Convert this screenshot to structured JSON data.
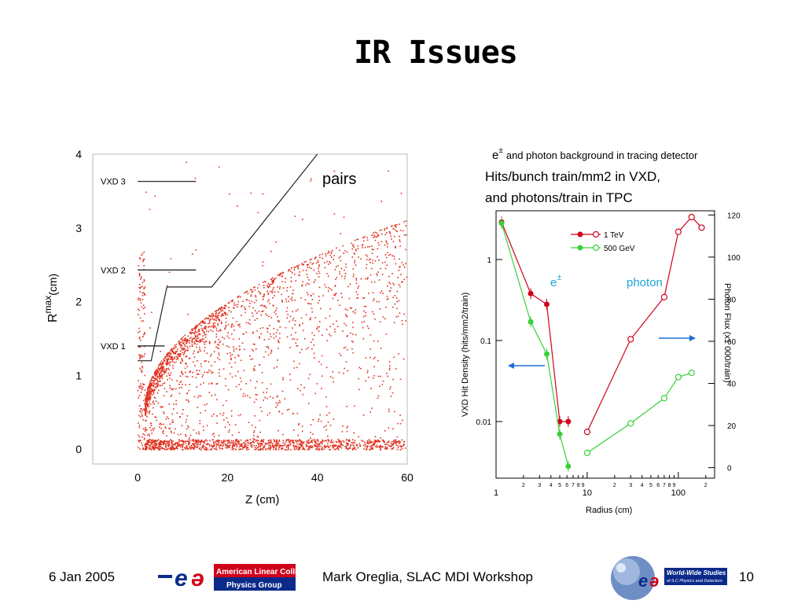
{
  "slide": {
    "title": "IR Issues",
    "footer": {
      "date": "6 Jan 2005",
      "presenter": "Mark Oreglia, SLAC MDI Workshop",
      "page": "10",
      "left_logo_text": [
        "American Linear Collider",
        "Physics Group"
      ],
      "right_logo_text": [
        "World-Wide Studies",
        "of ILC Physics and Detectors"
      ]
    }
  },
  "colors": {
    "accent_red": "#d0021b",
    "accent_green": "#39d139",
    "arrow_blue": "#1a6fd6",
    "cyan_text": "#1fa3d8"
  },
  "chart_data": [
    {
      "type": "scatter",
      "title": "",
      "xlabel": "Z  (cm)",
      "ylabel": "R",
      "ylabel_sup": "max",
      "ylabel_unit": "(cm)",
      "xlim": [
        -10,
        60
      ],
      "ylim": [
        -0.2,
        4
      ],
      "x_ticks": [
        0,
        20,
        40,
        60
      ],
      "y_ticks": [
        0,
        1,
        2,
        3,
        4
      ],
      "annotation": "pairs",
      "detector_layers": [
        {
          "label": "VXD 3",
          "r": 3.63,
          "z": [
            0,
            13
          ]
        },
        {
          "label": "VXD 2",
          "r": 2.43,
          "z": [
            0,
            13
          ]
        },
        {
          "label": "VXD 1",
          "r": 1.4,
          "z": [
            0,
            6
          ]
        }
      ],
      "beampipe_profile": {
        "z": [
          0,
          3,
          6.5,
          16.5,
          40
        ],
        "r": [
          1.2,
          1.2,
          2.2,
          2.2,
          4.0
        ]
      },
      "series": [
        {
          "color": "#e0301e",
          "description_points": "approx density of pairs background"
        }
      ]
    },
    {
      "type": "line",
      "title_prefix": "e",
      "title_sup": "±",
      "title": "and photon background  in tracing detector",
      "subtitle_lines": [
        "Hits/bunch train/mm2 in VXD,",
        "and photons/train in TPC"
      ],
      "xlabel": "Radius (cm)",
      "ylabel_left": "VXD Hit Density (hits/mm2/train)",
      "ylabel_right": "Photon Flux (x1 000/train)",
      "x_log": true,
      "y_left_log": true,
      "xlim": [
        1,
        250
      ],
      "ylim_left": [
        0.002,
        4
      ],
      "ylim_right": [
        -5,
        122
      ],
      "x_tick_labels": [
        "1",
        "10",
        "100"
      ],
      "x_minor_labels": [
        "2",
        "3",
        "4",
        "5",
        "6",
        "7",
        "8",
        "9"
      ],
      "y_left_tick_labels": [
        "0.01",
        "0.1",
        "1"
      ],
      "y_right_tick_labels": [
        "0",
        "20",
        "40",
        "60",
        "80",
        "100",
        "120"
      ],
      "legend": {
        "placement": "top-center",
        "entries": [
          "1 TeV",
          "500 GeV"
        ]
      },
      "annotations": {
        "epm": "e",
        "epm_sup": "±",
        "photon": "photon"
      },
      "series": [
        {
          "name": "1 TeV",
          "kind": "e±",
          "axis": "left",
          "color": "#d0021b",
          "x": [
            1.15,
            2.4,
            3.6,
            5.0,
            6.2
          ],
          "y": [
            2.9,
            0.38,
            0.28,
            0.01,
            0.01
          ]
        },
        {
          "name": "500 GeV",
          "kind": "e±",
          "axis": "left",
          "color": "#39d139",
          "x": [
            1.15,
            2.4,
            3.6,
            5.0,
            6.2
          ],
          "y": [
            2.8,
            0.17,
            0.068,
            0.007,
            0.0028
          ]
        },
        {
          "name": "1 TeV",
          "kind": "photon",
          "axis": "right",
          "color": "#d0021b",
          "x": [
            10,
            30,
            70,
            100,
            140,
            180
          ],
          "y": [
            17,
            61,
            81,
            112,
            119,
            114
          ]
        },
        {
          "name": "500 GeV",
          "kind": "photon",
          "axis": "right",
          "color": "#39d139",
          "x": [
            10,
            30,
            70,
            100,
            140
          ],
          "y": [
            7,
            21,
            33,
            43,
            45
          ]
        }
      ]
    }
  ]
}
